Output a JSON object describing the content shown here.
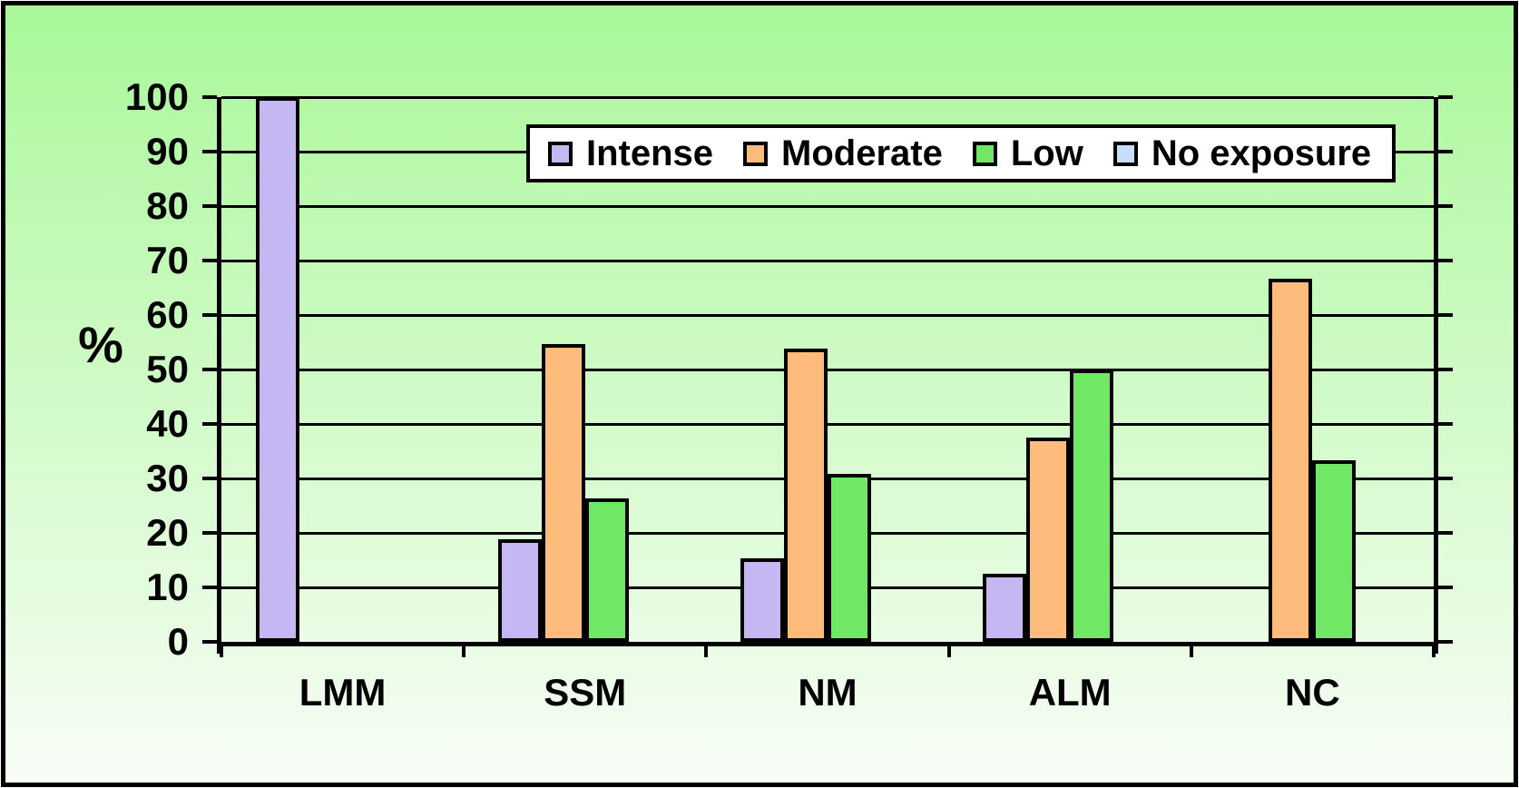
{
  "chart_data": {
    "type": "bar",
    "title": "",
    "ylabel": "%",
    "ylim": [
      0,
      100
    ],
    "ytick_step": 10,
    "grid": true,
    "legend_position": "top-center-inside",
    "categories": [
      "LMM",
      "SSM",
      "NM",
      "ALM",
      "NC"
    ],
    "series": [
      {
        "name": "Intense",
        "color": "#c5b7f1",
        "values": [
          100,
          18.9,
          15.4,
          12.5,
          0
        ]
      },
      {
        "name": "Moderate",
        "color": "#fdbc7c",
        "values": [
          0,
          54.7,
          53.8,
          37.5,
          66.7
        ]
      },
      {
        "name": "Low",
        "color": "#70e765",
        "values": [
          0,
          26.4,
          30.8,
          50,
          33.3
        ]
      },
      {
        "name": "No exposure",
        "color": "#c8ddf8",
        "values": [
          0,
          0,
          0,
          0,
          0
        ]
      }
    ],
    "colors": {
      "frame_border": "#000000",
      "axis": "#000000",
      "gridline": "#000000",
      "legend_background": "#ffffff",
      "background_gradient_top": "#a9f899",
      "background_gradient_bottom": "#f8fdf6"
    }
  }
}
